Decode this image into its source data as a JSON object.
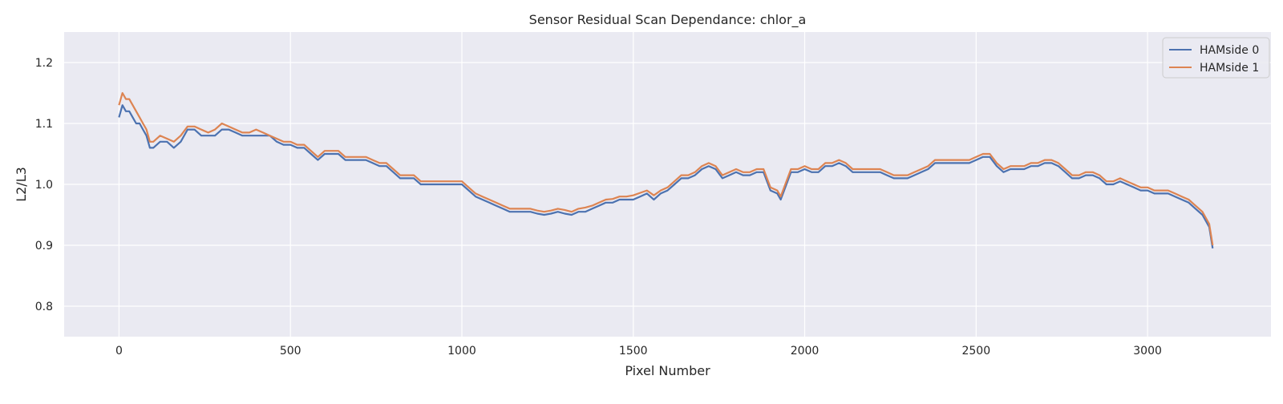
{
  "chart_data": {
    "type": "line",
    "title": "Sensor Residual Scan Dependance: chlor_a",
    "xlabel": "Pixel Number",
    "ylabel": "L2/L3",
    "xlim": [
      -160,
      3360
    ],
    "ylim": [
      0.75,
      1.25
    ],
    "xticks": [
      0,
      500,
      1000,
      1500,
      2000,
      2500,
      3000
    ],
    "yticks": [
      0.8,
      0.9,
      1.0,
      1.1,
      1.2
    ],
    "xtick_labels": [
      "0",
      "500",
      "1000",
      "1500",
      "2000",
      "2500",
      "3000"
    ],
    "ytick_labels": [
      "0.8",
      "0.9",
      "1.0",
      "1.1",
      "1.2"
    ],
    "grid": true,
    "legend_position": "top-right",
    "colors": {
      "plot_background": "#eaeaf2",
      "grid": "#ffffff",
      "series_0": "#4c72b0",
      "series_1": "#dd8452"
    },
    "series": [
      {
        "name": "HAMside 0",
        "x": [
          0,
          10,
          20,
          30,
          40,
          50,
          60,
          70,
          80,
          90,
          100,
          120,
          140,
          160,
          180,
          200,
          220,
          240,
          260,
          280,
          300,
          320,
          340,
          360,
          380,
          400,
          420,
          440,
          460,
          480,
          500,
          520,
          540,
          560,
          580,
          600,
          620,
          640,
          660,
          680,
          700,
          720,
          740,
          760,
          780,
          800,
          820,
          840,
          860,
          880,
          900,
          920,
          940,
          960,
          980,
          1000,
          1020,
          1040,
          1060,
          1080,
          1100,
          1120,
          1140,
          1160,
          1180,
          1200,
          1220,
          1240,
          1260,
          1280,
          1300,
          1320,
          1340,
          1360,
          1380,
          1400,
          1420,
          1440,
          1460,
          1480,
          1500,
          1520,
          1540,
          1560,
          1580,
          1600,
          1620,
          1640,
          1660,
          1680,
          1700,
          1720,
          1740,
          1760,
          1780,
          1800,
          1820,
          1840,
          1860,
          1880,
          1900,
          1920,
          1930,
          1940,
          1960,
          1980,
          2000,
          2020,
          2040,
          2060,
          2080,
          2100,
          2120,
          2140,
          2160,
          2180,
          2200,
          2220,
          2240,
          2260,
          2280,
          2300,
          2320,
          2340,
          2360,
          2380,
          2400,
          2420,
          2440,
          2460,
          2480,
          2500,
          2520,
          2540,
          2560,
          2580,
          2600,
          2620,
          2640,
          2660,
          2680,
          2700,
          2720,
          2740,
          2760,
          2780,
          2800,
          2820,
          2840,
          2860,
          2880,
          2900,
          2920,
          2940,
          2960,
          2980,
          3000,
          3020,
          3040,
          3060,
          3080,
          3100,
          3120,
          3140,
          3160,
          3180,
          3190
        ],
        "y": [
          1.11,
          1.13,
          1.12,
          1.12,
          1.11,
          1.1,
          1.1,
          1.09,
          1.08,
          1.06,
          1.06,
          1.07,
          1.07,
          1.06,
          1.07,
          1.09,
          1.09,
          1.08,
          1.08,
          1.08,
          1.09,
          1.09,
          1.085,
          1.08,
          1.08,
          1.08,
          1.08,
          1.08,
          1.07,
          1.065,
          1.065,
          1.06,
          1.06,
          1.05,
          1.04,
          1.05,
          1.05,
          1.05,
          1.04,
          1.04,
          1.04,
          1.04,
          1.035,
          1.03,
          1.03,
          1.02,
          1.01,
          1.01,
          1.01,
          1.0,
          1.0,
          1.0,
          1.0,
          1.0,
          1.0,
          1.0,
          0.99,
          0.98,
          0.975,
          0.97,
          0.965,
          0.96,
          0.955,
          0.955,
          0.955,
          0.955,
          0.952,
          0.95,
          0.952,
          0.955,
          0.952,
          0.95,
          0.955,
          0.955,
          0.96,
          0.965,
          0.97,
          0.97,
          0.975,
          0.975,
          0.975,
          0.98,
          0.985,
          0.975,
          0.985,
          0.99,
          1.0,
          1.01,
          1.01,
          1.015,
          1.025,
          1.03,
          1.025,
          1.01,
          1.015,
          1.02,
          1.015,
          1.015,
          1.02,
          1.02,
          0.99,
          0.985,
          0.975,
          0.99,
          1.02,
          1.02,
          1.025,
          1.02,
          1.02,
          1.03,
          1.03,
          1.035,
          1.03,
          1.02,
          1.02,
          1.02,
          1.02,
          1.02,
          1.015,
          1.01,
          1.01,
          1.01,
          1.015,
          1.02,
          1.025,
          1.035,
          1.035,
          1.035,
          1.035,
          1.035,
          1.035,
          1.04,
          1.045,
          1.045,
          1.03,
          1.02,
          1.025,
          1.025,
          1.025,
          1.03,
          1.03,
          1.035,
          1.035,
          1.03,
          1.02,
          1.01,
          1.01,
          1.015,
          1.015,
          1.01,
          1.0,
          1.0,
          1.005,
          1.0,
          0.995,
          0.99,
          0.99,
          0.985,
          0.985,
          0.985,
          0.98,
          0.975,
          0.97,
          0.96,
          0.95,
          0.93,
          0.895
        ]
      },
      {
        "name": "HAMside 1",
        "x": [
          0,
          10,
          20,
          30,
          40,
          50,
          60,
          70,
          80,
          90,
          100,
          120,
          140,
          160,
          180,
          200,
          220,
          240,
          260,
          280,
          300,
          320,
          340,
          360,
          380,
          400,
          420,
          440,
          460,
          480,
          500,
          520,
          540,
          560,
          580,
          600,
          620,
          640,
          660,
          680,
          700,
          720,
          740,
          760,
          780,
          800,
          820,
          840,
          860,
          880,
          900,
          920,
          940,
          960,
          980,
          1000,
          1020,
          1040,
          1060,
          1080,
          1100,
          1120,
          1140,
          1160,
          1180,
          1200,
          1220,
          1240,
          1260,
          1280,
          1300,
          1320,
          1340,
          1360,
          1380,
          1400,
          1420,
          1440,
          1460,
          1480,
          1500,
          1520,
          1540,
          1560,
          1580,
          1600,
          1620,
          1640,
          1660,
          1680,
          1700,
          1720,
          1740,
          1760,
          1780,
          1800,
          1820,
          1840,
          1860,
          1880,
          1900,
          1920,
          1930,
          1940,
          1960,
          1980,
          2000,
          2020,
          2040,
          2060,
          2080,
          2100,
          2120,
          2140,
          2160,
          2180,
          2200,
          2220,
          2240,
          2260,
          2280,
          2300,
          2320,
          2340,
          2360,
          2380,
          2400,
          2420,
          2440,
          2460,
          2480,
          2500,
          2520,
          2540,
          2560,
          2580,
          2600,
          2620,
          2640,
          2660,
          2680,
          2700,
          2720,
          2740,
          2760,
          2780,
          2800,
          2820,
          2840,
          2860,
          2880,
          2900,
          2920,
          2940,
          2960,
          2980,
          3000,
          3020,
          3040,
          3060,
          3080,
          3100,
          3120,
          3140,
          3160,
          3180,
          3190
        ],
        "y": [
          1.13,
          1.15,
          1.14,
          1.14,
          1.13,
          1.12,
          1.11,
          1.1,
          1.09,
          1.07,
          1.07,
          1.08,
          1.075,
          1.07,
          1.08,
          1.095,
          1.095,
          1.09,
          1.085,
          1.09,
          1.1,
          1.095,
          1.09,
          1.085,
          1.085,
          1.09,
          1.085,
          1.08,
          1.075,
          1.07,
          1.07,
          1.065,
          1.065,
          1.055,
          1.045,
          1.055,
          1.055,
          1.055,
          1.045,
          1.045,
          1.045,
          1.045,
          1.04,
          1.035,
          1.035,
          1.025,
          1.015,
          1.015,
          1.015,
          1.005,
          1.005,
          1.005,
          1.005,
          1.005,
          1.005,
          1.005,
          0.995,
          0.985,
          0.98,
          0.975,
          0.97,
          0.965,
          0.96,
          0.96,
          0.96,
          0.96,
          0.957,
          0.955,
          0.957,
          0.96,
          0.958,
          0.955,
          0.96,
          0.962,
          0.965,
          0.97,
          0.975,
          0.976,
          0.98,
          0.98,
          0.982,
          0.986,
          0.99,
          0.982,
          0.99,
          0.995,
          1.005,
          1.015,
          1.015,
          1.02,
          1.03,
          1.035,
          1.03,
          1.015,
          1.02,
          1.025,
          1.02,
          1.02,
          1.025,
          1.025,
          0.995,
          0.99,
          0.98,
          0.995,
          1.025,
          1.025,
          1.03,
          1.025,
          1.025,
          1.035,
          1.035,
          1.04,
          1.035,
          1.025,
          1.025,
          1.025,
          1.025,
          1.025,
          1.02,
          1.015,
          1.015,
          1.015,
          1.02,
          1.025,
          1.03,
          1.04,
          1.04,
          1.04,
          1.04,
          1.04,
          1.04,
          1.045,
          1.05,
          1.05,
          1.035,
          1.025,
          1.03,
          1.03,
          1.03,
          1.035,
          1.035,
          1.04,
          1.04,
          1.035,
          1.025,
          1.015,
          1.015,
          1.02,
          1.02,
          1.015,
          1.005,
          1.005,
          1.01,
          1.005,
          1.0,
          0.995,
          0.995,
          0.99,
          0.99,
          0.99,
          0.985,
          0.98,
          0.975,
          0.965,
          0.955,
          0.935,
          0.9
        ]
      }
    ]
  }
}
